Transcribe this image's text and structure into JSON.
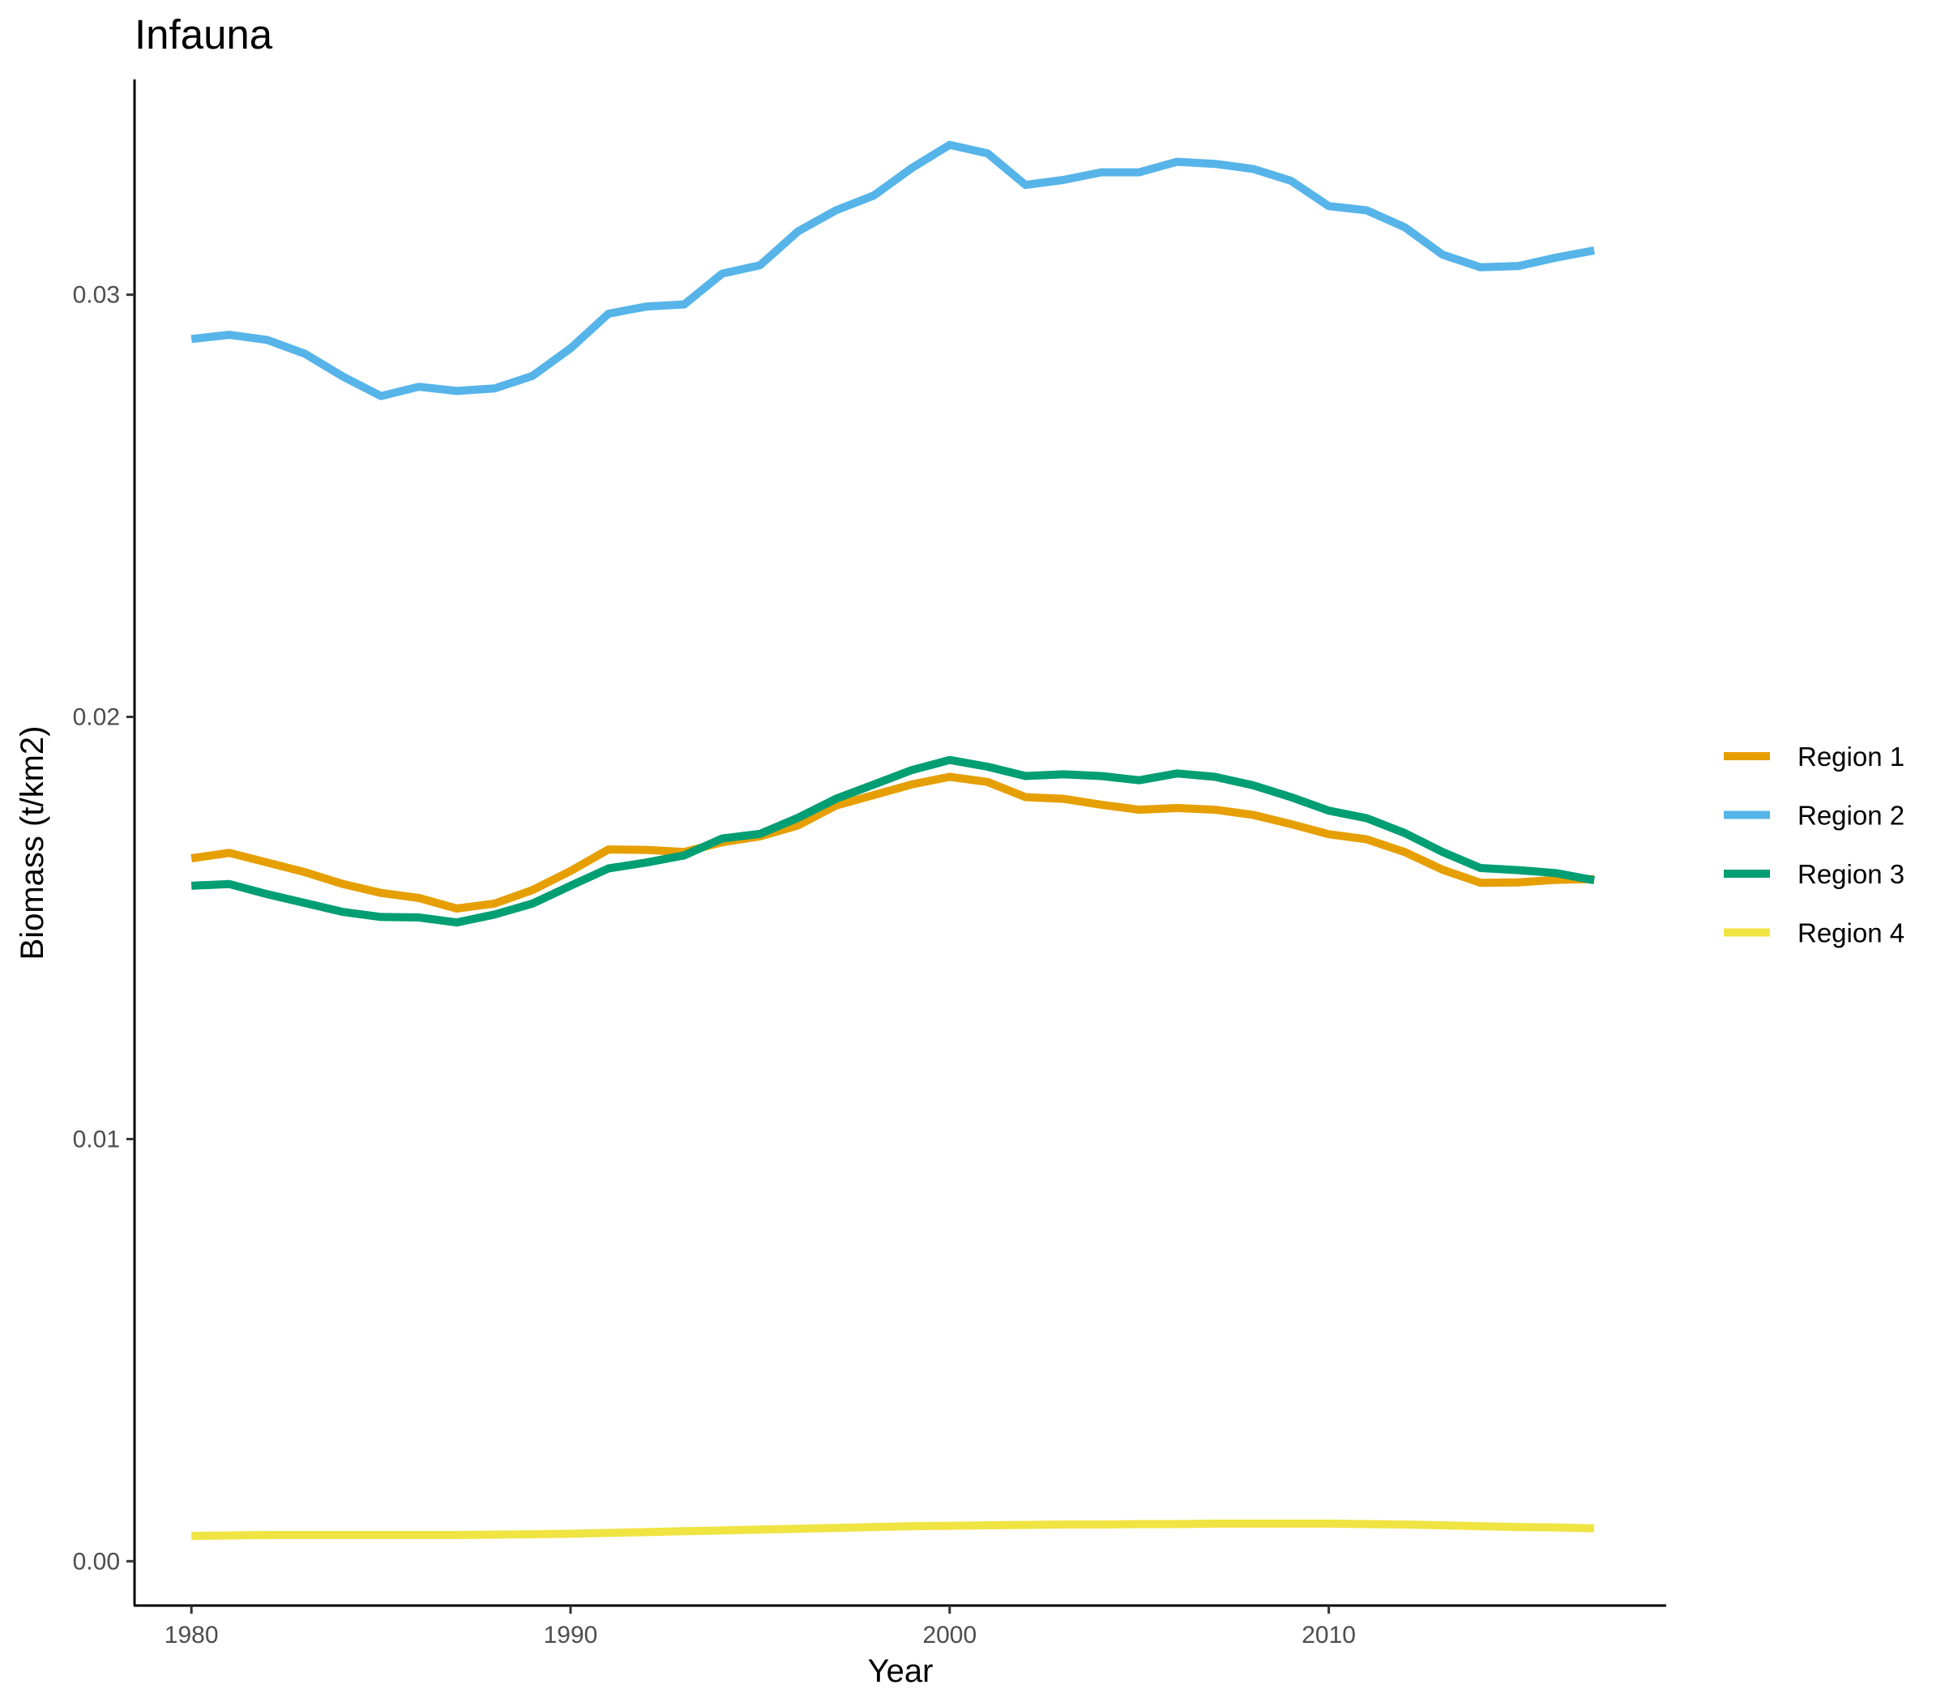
{
  "chart_data": {
    "type": "line",
    "title": "Infauna",
    "xlabel": "Year",
    "ylabel": "Biomass (t/km2)",
    "xlim": [
      1978.5,
      2018.9
    ],
    "ylim": [
      -0.00105,
      0.0351
    ],
    "x_ticks": [
      1980,
      1990,
      2000,
      2010
    ],
    "x_tick_labels": [
      "1980",
      "1990",
      "2000",
      "2010"
    ],
    "y_ticks": [
      0.0,
      0.01,
      0.02,
      0.03
    ],
    "y_tick_labels": [
      "0.00",
      "0.01",
      "0.02",
      "0.03"
    ],
    "grid": false,
    "legend_position": "right",
    "x": [
      1980,
      1981,
      1982,
      1983,
      1984,
      1985,
      1986,
      1987,
      1988,
      1989,
      1990,
      1991,
      1992,
      1993,
      1994,
      1995,
      1996,
      1997,
      1998,
      1999,
      2000,
      2001,
      2002,
      2003,
      2004,
      2005,
      2006,
      2007,
      2008,
      2009,
      2010,
      2011,
      2012,
      2013,
      2014,
      2015,
      2016,
      2017
    ],
    "series": [
      {
        "name": "Region 1",
        "color": "#E69F00",
        "values": [
          0.01665,
          0.01678,
          0.01655,
          0.01632,
          0.01604,
          0.01583,
          0.01571,
          0.01546,
          0.01558,
          0.0159,
          0.01635,
          0.01686,
          0.01685,
          0.0168,
          0.01703,
          0.01717,
          0.01743,
          0.0179,
          0.01815,
          0.0184,
          0.01858,
          0.01846,
          0.0181,
          0.01806,
          0.01792,
          0.0178,
          0.01784,
          0.0178,
          0.01768,
          0.01746,
          0.01722,
          0.0171,
          0.0168,
          0.01638,
          0.01607,
          0.01608,
          0.01614,
          0.01616
        ]
      },
      {
        "name": "Region 2",
        "color": "#56B4E9",
        "values": [
          0.02895,
          0.02905,
          0.02893,
          0.0286,
          0.02806,
          0.0276,
          0.02782,
          0.02772,
          0.02778,
          0.02808,
          0.02873,
          0.02955,
          0.02972,
          0.02977,
          0.0305,
          0.0307,
          0.0315,
          0.032,
          0.03235,
          0.033,
          0.03355,
          0.03335,
          0.0326,
          0.03272,
          0.0329,
          0.0329,
          0.03315,
          0.0331,
          0.03298,
          0.0327,
          0.0321,
          0.032,
          0.0316,
          0.03095,
          0.03065,
          0.03068,
          0.03088,
          0.03105
        ]
      },
      {
        "name": "Region 3",
        "color": "#009E73",
        "values": [
          0.016,
          0.01604,
          0.0158,
          0.01559,
          0.01538,
          0.01526,
          0.01525,
          0.01513,
          0.01532,
          0.01558,
          0.016,
          0.01641,
          0.01655,
          0.01672,
          0.01712,
          0.01723,
          0.01761,
          0.01806,
          0.0184,
          0.01874,
          0.01898,
          0.01882,
          0.0186,
          0.01864,
          0.0186,
          0.0185,
          0.01866,
          0.01858,
          0.01838,
          0.0181,
          0.01778,
          0.0176,
          0.01725,
          0.0168,
          0.01642,
          0.01637,
          0.0163,
          0.01613
        ]
      },
      {
        "name": "Region 4",
        "color": "#F0E442",
        "values": [
          0.0006,
          0.00061,
          0.00062,
          0.00062,
          0.00062,
          0.00062,
          0.00062,
          0.00062,
          0.00063,
          0.00064,
          0.00065,
          0.00067,
          0.00069,
          0.00071,
          0.00073,
          0.00075,
          0.00077,
          0.00079,
          0.00081,
          0.00083,
          0.00084,
          0.00085,
          0.00086,
          0.00087,
          0.00087,
          0.00088,
          0.00088,
          0.00089,
          0.00089,
          0.00089,
          0.00089,
          0.00088,
          0.00087,
          0.00085,
          0.00083,
          0.00081,
          0.0008,
          0.00078
        ]
      }
    ]
  }
}
